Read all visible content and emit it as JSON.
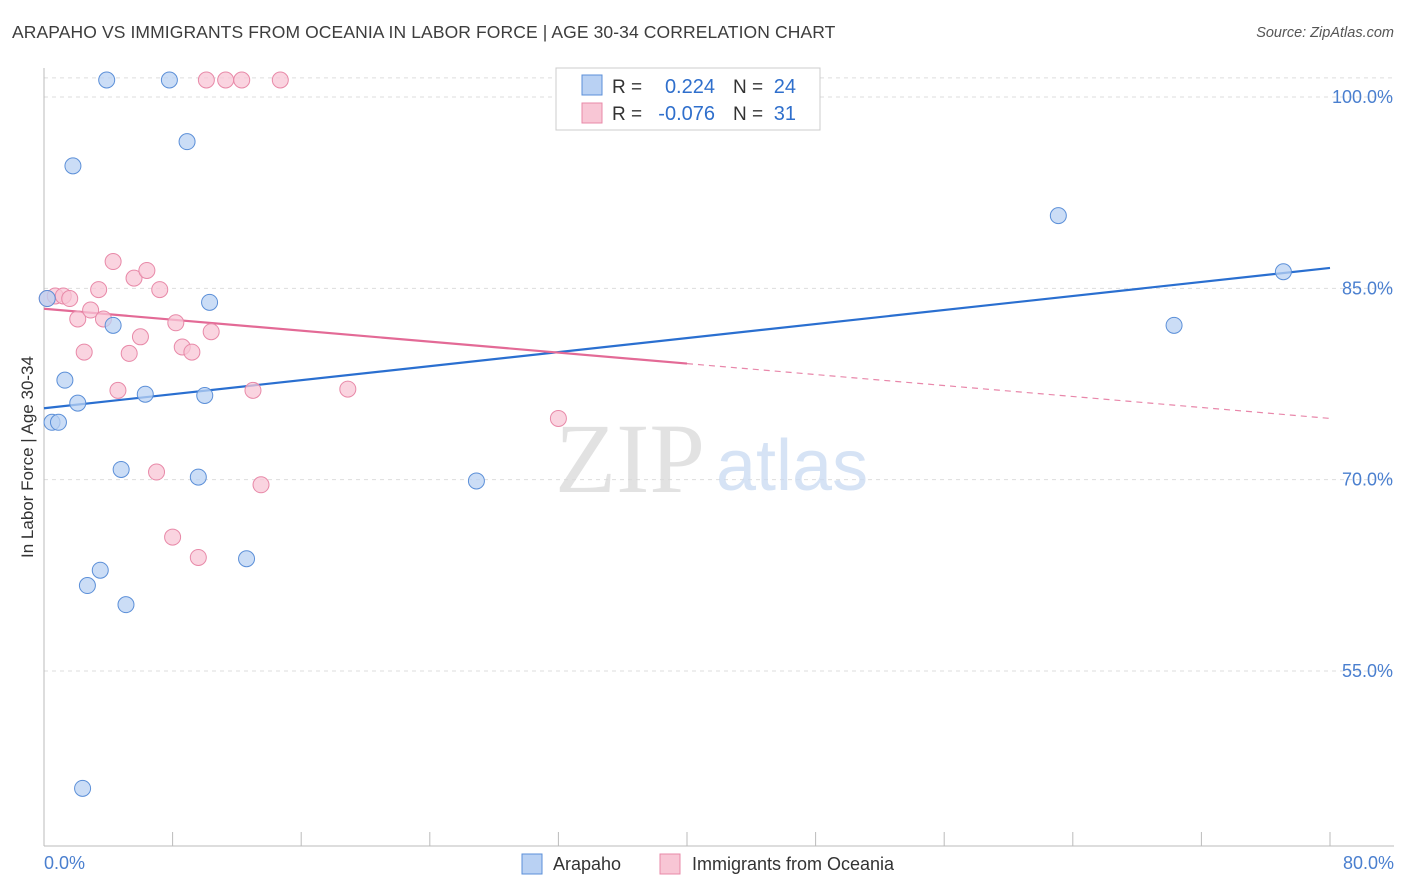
{
  "header": {
    "title": "ARAPAHO VS IMMIGRANTS FROM OCEANIA IN LABOR FORCE | AGE 30-34 CORRELATION CHART",
    "source": "Source: ZipAtlas.com"
  },
  "watermark": {
    "zip": "ZIP",
    "atlas": "atlas"
  },
  "legend": {
    "rows": [
      {
        "r_label": "R =",
        "r_value": "0.224",
        "n_label": "N =",
        "n_value": "24"
      },
      {
        "r_label": "R =",
        "r_value": "-0.076",
        "n_label": "N =",
        "n_value": "31"
      }
    ]
  },
  "colors": {
    "arapaho_fill": "#b9d1f3",
    "arapaho_stroke": "#5b8fd8",
    "arapaho_line": "#2a6fd0",
    "oceania_fill": "#f8c6d5",
    "oceania_stroke": "#e889a8",
    "oceania_line": "#e36a96",
    "tick_text": "#4a7fcf",
    "grid": "#dddddd"
  },
  "chart_data": {
    "type": "scatter",
    "title": "ARAPAHO VS IMMIGRANTS FROM OCEANIA IN LABOR FORCE | AGE 30-34 CORRELATION CHART",
    "xlabel": "",
    "ylabel": "In Labor Force | Age 30-34",
    "xlim": [
      0,
      80
    ],
    "ylim": [
      40,
      103
    ],
    "x_tick_labels": [
      "0.0%",
      "80.0%"
    ],
    "y_ticks": [
      100,
      85,
      70,
      55
    ],
    "y_tick_labels": [
      "100.0%",
      "85.0%",
      "70.0%",
      "55.0%"
    ],
    "grid": true,
    "legend_position": "top-center",
    "series": [
      {
        "name": "Arapaho",
        "r": 0.224,
        "n": 24,
        "points": [
          [
            0.2,
            84.2
          ],
          [
            0.5,
            74.5
          ],
          [
            0.9,
            74.5
          ],
          [
            1.3,
            77.8
          ],
          [
            1.8,
            94.6
          ],
          [
            2.1,
            76.0
          ],
          [
            2.4,
            45.8
          ],
          [
            2.7,
            61.7
          ],
          [
            3.5,
            62.9
          ],
          [
            3.9,
            101.5
          ],
          [
            4.3,
            82.1
          ],
          [
            4.8,
            70.8
          ],
          [
            5.1,
            60.2
          ],
          [
            6.3,
            76.7
          ],
          [
            7.8,
            101.5
          ],
          [
            8.9,
            96.5
          ],
          [
            9.6,
            70.2
          ],
          [
            10.0,
            76.6
          ],
          [
            10.3,
            83.9
          ],
          [
            12.6,
            63.8
          ],
          [
            26.9,
            69.9
          ],
          [
            63.1,
            90.7
          ],
          [
            70.3,
            82.1
          ],
          [
            77.1,
            86.3
          ]
        ],
        "trend": {
          "x": [
            0,
            80
          ],
          "y": [
            75.6,
            86.6
          ]
        }
      },
      {
        "name": "Immigrants from Oceania",
        "r": -0.076,
        "n": 31,
        "points": [
          [
            0.2,
            84.2
          ],
          [
            0.7,
            84.4
          ],
          [
            1.2,
            84.4
          ],
          [
            1.6,
            84.2
          ],
          [
            2.1,
            82.6
          ],
          [
            2.5,
            80.0
          ],
          [
            2.9,
            83.3
          ],
          [
            3.4,
            84.9
          ],
          [
            3.7,
            82.6
          ],
          [
            4.3,
            87.1
          ],
          [
            4.6,
            77.0
          ],
          [
            5.3,
            79.9
          ],
          [
            5.6,
            85.8
          ],
          [
            6.0,
            81.2
          ],
          [
            6.4,
            86.4
          ],
          [
            7.0,
            70.6
          ],
          [
            7.2,
            84.9
          ],
          [
            8.0,
            65.5
          ],
          [
            8.2,
            82.3
          ],
          [
            8.6,
            80.4
          ],
          [
            9.2,
            80.0
          ],
          [
            9.6,
            63.9
          ],
          [
            10.1,
            101.5
          ],
          [
            10.4,
            81.6
          ],
          [
            11.3,
            101.5
          ],
          [
            12.3,
            101.5
          ],
          [
            13.0,
            77.0
          ],
          [
            13.5,
            69.6
          ],
          [
            14.7,
            101.5
          ],
          [
            18.9,
            77.1
          ],
          [
            32.0,
            74.8
          ]
        ],
        "trend": {
          "x": [
            0,
            40
          ],
          "y": [
            83.4,
            79.1
          ],
          "dashed_x": [
            40,
            80
          ],
          "dashed_y": [
            79.1,
            74.8
          ]
        }
      }
    ]
  }
}
